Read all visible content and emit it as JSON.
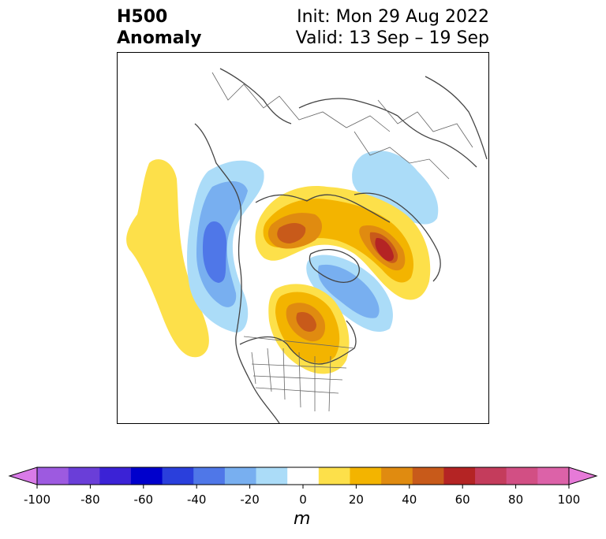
{
  "title": {
    "variable": "H500",
    "subtitle": "Anomaly",
    "init": "Init: Mon 29 Aug 2022",
    "valid": "Valid: 13 Sep – 19 Sep"
  },
  "colorbar": {
    "unit": "m",
    "ticks": [
      "-100",
      "-80",
      "-60",
      "-40",
      "-20",
      "0",
      "20",
      "40",
      "60",
      "80",
      "100"
    ],
    "colors": [
      "#d97be8",
      "#9d5ae0",
      "#6a3ed8",
      "#3b22d6",
      "#0000cc",
      "#2a3fdc",
      "#4f77e8",
      "#78aff0",
      "#abdcf8",
      "#ffffff",
      "#fde04a",
      "#f3b400",
      "#e08b10",
      "#c85a1a",
      "#b42424",
      "#c43c5c",
      "#d24f84",
      "#dc62a8",
      "#e67ad8"
    ],
    "extend": "both"
  },
  "map": {
    "projection": "north-polar-stereographic",
    "field": "500 hPa geopotential height anomaly"
  }
}
